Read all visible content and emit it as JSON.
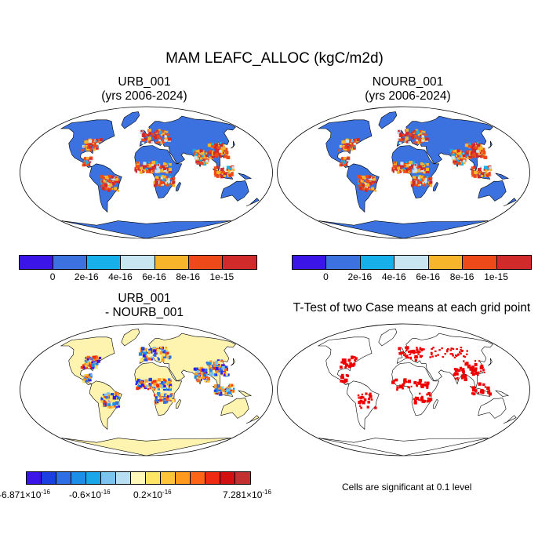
{
  "title": "MAM LEAFC_ALLOC (kgC/m2d)",
  "panels": {
    "p1": {
      "title_line1": "URB_001",
      "title_line2": "(yrs 2006-2024)"
    },
    "p2": {
      "title_line1": "NOURB_001",
      "title_line2": "(yrs 2006-2024)"
    },
    "p3": {
      "title_line1": "URB_001",
      "title_line2": "- NOURB_001"
    },
    "p4": {
      "title_line1": "T-Test of two Case means at each grid point",
      "note": "Cells are significant at 0.1 level"
    }
  },
  "colorbar_top": {
    "colors": [
      "#3b14e8",
      "#3b72e0",
      "#17b0ea",
      "#c8e6f2",
      "#f7b52c",
      "#ee4a19",
      "#d12a2a"
    ],
    "labels": [
      "0",
      "2e-16",
      "4e-16",
      "6e-16",
      "8e-16",
      "1e-15"
    ]
  },
  "colorbar_diff": {
    "colors": [
      "#3b14e8",
      "#1c3fe0",
      "#2f6fe6",
      "#1b8fe8",
      "#1aa7ea",
      "#7ac4ee",
      "#b8def2",
      "#fff8b8",
      "#ffe566",
      "#ffc53a",
      "#ff9a1f",
      "#ff6417",
      "#ee2a12",
      "#d40f0f",
      "#c23030"
    ],
    "label_min_mant": "-6.871×10",
    "label_min_exp": "-16",
    "label_mid1_mant": "-0.6×10",
    "label_mid1_exp": "-16",
    "label_mid2_mant": "0.2×10",
    "label_mid2_exp": "-16",
    "label_max_mant": "7.281×10",
    "label_max_exp": "-16"
  },
  "colors": {
    "map_background": "#3b72e0",
    "diff_background": "#fff3b0",
    "significance": "#ee0000"
  }
}
